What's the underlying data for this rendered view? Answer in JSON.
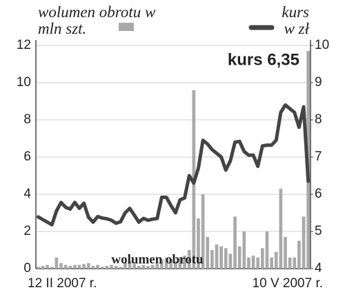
{
  "chart_data": {
    "type": "bar-line",
    "categories": [
      "12 II 2007 r.",
      null,
      null,
      null,
      null,
      null,
      null,
      null,
      null,
      null,
      null,
      null,
      null,
      null,
      null,
      null,
      null,
      null,
      null,
      null,
      null,
      null,
      null,
      null,
      null,
      null,
      null,
      null,
      null,
      null,
      null,
      null,
      null,
      null,
      null,
      null,
      null,
      null,
      null,
      null,
      null,
      null,
      null,
      null,
      null,
      null,
      null,
      null,
      null,
      null,
      null,
      null,
      null,
      null,
      null,
      null,
      null,
      null,
      null,
      "10 V 2007 r."
    ],
    "series": [
      {
        "name": "wolumen obrotu w mln szt.",
        "type": "bar",
        "color": "#a9a9a9",
        "values": [
          0.1,
          0.15,
          0.2,
          0.1,
          0.6,
          0.3,
          0.2,
          0.15,
          0.2,
          0.2,
          0.25,
          0.3,
          0.15,
          0.2,
          0.1,
          0.15,
          0.2,
          0.15,
          0.1,
          0.35,
          0.4,
          0.25,
          0.15,
          0.2,
          0.15,
          0.2,
          0.25,
          0.5,
          0.6,
          0.5,
          0.4,
          0.6,
          0.7,
          1.0,
          9.6,
          2.7,
          4.0,
          1.7,
          1.0,
          1.3,
          1.2,
          1.1,
          0.8,
          2.8,
          1.2,
          2.0,
          0.6,
          0.7,
          0.6,
          1.1,
          2.0,
          0.6,
          0.9,
          4.3,
          1.7,
          0.6,
          0.6,
          1.5,
          2.8,
          11.7
        ]
      },
      {
        "name": "kurs w zł",
        "type": "line",
        "axis": "y2",
        "color": "#444444",
        "values": [
          5.39,
          5.32,
          5.25,
          5.18,
          5.55,
          5.78,
          5.65,
          5.6,
          5.78,
          5.62,
          5.76,
          5.38,
          5.25,
          5.4,
          5.36,
          5.34,
          5.3,
          5.22,
          5.26,
          5.5,
          5.62,
          5.44,
          5.25,
          5.35,
          5.3,
          5.33,
          5.35,
          5.92,
          5.92,
          5.7,
          5.5,
          5.85,
          5.9,
          6.5,
          6.3,
          6.7,
          7.45,
          7.35,
          7.2,
          7.1,
          7.0,
          6.65,
          6.9,
          7.4,
          7.42,
          7.15,
          7.05,
          7.05,
          6.75,
          7.3,
          7.32,
          7.32,
          7.45,
          8.2,
          8.4,
          8.3,
          8.2,
          7.8,
          8.35,
          6.35
        ]
      }
    ],
    "annotations": [
      "kurs 6,35",
      "wolumen obrotu"
    ],
    "ylim": [
      0,
      12
    ],
    "yticks": [
      0,
      2,
      4,
      6,
      8,
      10,
      12
    ],
    "y2lim": [
      4,
      10
    ],
    "y2ticks": [
      4,
      5,
      6,
      7,
      8,
      9,
      10
    ],
    "grid": true
  }
}
